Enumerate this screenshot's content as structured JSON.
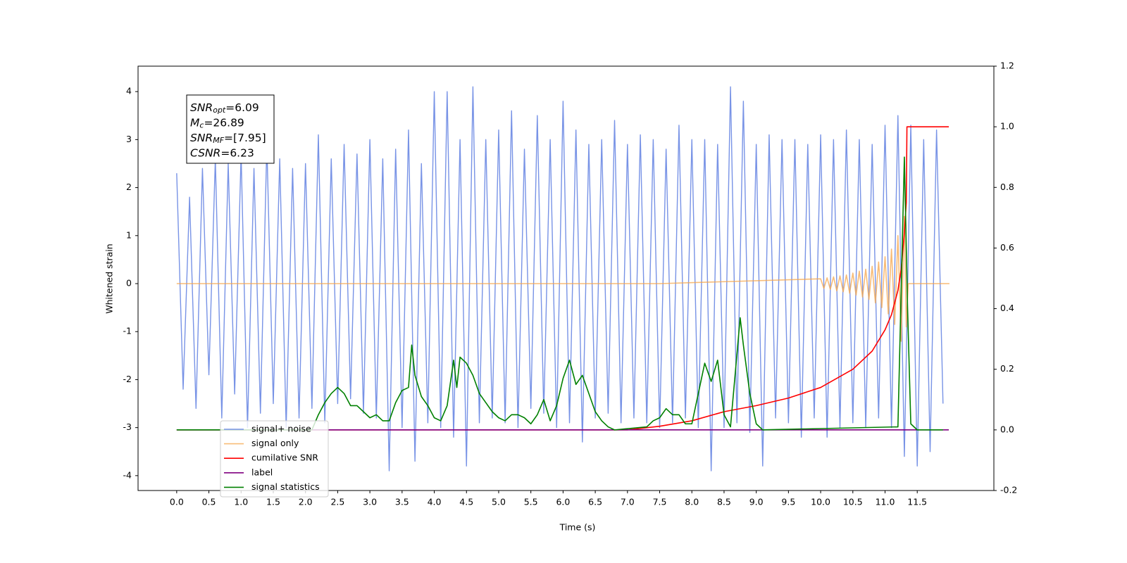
{
  "chart_data": {
    "type": "line",
    "xlabel": "Time (s)",
    "ylabel": "Whitened strain",
    "xlim": [
      -0.6,
      12.69
    ],
    "ylim": [
      -4.31,
      4.53
    ],
    "y2lim": [
      -0.2,
      1.2
    ],
    "xticks": [
      {
        "value": 0,
        "label": "0.0"
      },
      0.5,
      {
        "value": 1,
        "label": "1.0"
      },
      1.5,
      {
        "value": 2,
        "label": "2.0"
      },
      2.5,
      {
        "value": 3,
        "label": "3.0"
      },
      3.5,
      {
        "value": 4,
        "label": "4.0"
      },
      4.5,
      {
        "value": 5,
        "label": "5.0"
      },
      5.5,
      {
        "value": 6,
        "label": "6.0"
      },
      6.5,
      {
        "value": 7,
        "label": "7.0"
      },
      7.5,
      {
        "value": 8,
        "label": "8.0"
      },
      8.5,
      {
        "value": 9,
        "label": "9.0"
      },
      9.5,
      {
        "value": 10,
        "label": "10.0"
      },
      10.5,
      {
        "value": 11,
        "label": "11.0"
      },
      11.5
    ],
    "yticks": [
      -4,
      -3,
      -2,
      -1,
      0,
      1,
      2,
      3,
      4
    ],
    "y2ticks": [
      -0.2,
      {
        "value": 0,
        "label": "0.0"
      },
      0.2,
      0.4,
      0.6,
      0.8,
      {
        "value": 1,
        "label": "1.0"
      },
      1.2
    ],
    "annotation": [
      {
        "main": "SNR",
        "sub": "opt",
        "rest": "=6.09"
      },
      {
        "main": "M",
        "sub": "c",
        "rest": "=26.89"
      },
      {
        "main": "SNR",
        "sub": "MF",
        "rest": "=[7.95]"
      },
      {
        "main": "CSNR",
        "rest": "=6.23"
      }
    ],
    "series": [
      {
        "name": "signal+ noise",
        "color": "#7893e6",
        "axis": "y",
        "x": [
          0,
          0.1,
          0.2,
          0.3,
          0.4,
          0.5,
          0.6,
          0.7,
          0.8,
          0.9,
          1,
          1.1,
          1.2,
          1.3,
          1.4,
          1.5,
          1.6,
          1.7,
          1.8,
          1.9,
          2,
          2.1,
          2.2,
          2.3,
          2.4,
          2.5,
          2.6,
          2.7,
          2.8,
          2.9,
          3,
          3.1,
          3.2,
          3.3,
          3.4,
          3.5,
          3.6,
          3.7,
          3.8,
          3.9,
          4,
          4.1,
          4.2,
          4.3,
          4.4,
          4.5,
          4.6,
          4.7,
          4.8,
          4.9,
          5,
          5.1,
          5.2,
          5.3,
          5.4,
          5.5,
          5.6,
          5.7,
          5.8,
          5.9,
          6,
          6.1,
          6.2,
          6.3,
          6.4,
          6.5,
          6.6,
          6.7,
          6.8,
          6.9,
          7,
          7.1,
          7.2,
          7.3,
          7.4,
          7.5,
          7.6,
          7.7,
          7.8,
          7.9,
          8,
          8.1,
          8.2,
          8.3,
          8.4,
          8.5,
          8.6,
          8.7,
          8.8,
          8.9,
          9,
          9.1,
          9.2,
          9.3,
          9.4,
          9.5,
          9.6,
          9.7,
          9.8,
          9.9,
          10,
          10.1,
          10.2,
          10.3,
          10.4,
          10.5,
          10.6,
          10.7,
          10.8,
          10.9,
          11,
          11.1,
          11.2,
          11.3,
          11.4,
          11.5,
          11.6,
          11.7,
          11.8,
          11.9
        ],
        "values": [
          2.3,
          -2.2,
          1.8,
          -2.6,
          2.4,
          -1.9,
          2.6,
          -2.8,
          2.5,
          -2.3,
          2.7,
          -3.0,
          2.4,
          -2.7,
          2.9,
          -2.5,
          2.6,
          -3.0,
          2.4,
          -2.8,
          2.5,
          -2.6,
          3.1,
          -2.9,
          2.6,
          -2.5,
          2.9,
          -2.4,
          2.7,
          -2.7,
          3.0,
          -2.8,
          2.6,
          -3.9,
          2.8,
          -3.0,
          3.2,
          -3.7,
          2.5,
          -2.9,
          4.0,
          -3.0,
          4.0,
          -3.2,
          3.0,
          -3.8,
          4.1,
          -2.9,
          3.0,
          -2.8,
          3.2,
          -2.9,
          3.6,
          -3.0,
          2.8,
          -2.6,
          3.5,
          -2.7,
          3.0,
          -3.0,
          3.8,
          -2.9,
          3.2,
          -3.3,
          2.9,
          -2.8,
          3.0,
          -2.7,
          3.4,
          -2.9,
          2.9,
          -2.8,
          3.1,
          -2.9,
          3.0,
          -3.0,
          2.8,
          -2.9,
          3.3,
          -2.8,
          3.0,
          -3.0,
          3.0,
          -3.9,
          2.9,
          -3.0,
          4.1,
          -2.9,
          3.8,
          -3.1,
          2.9,
          -3.8,
          3.1,
          -2.8,
          3.0,
          -2.9,
          3.0,
          -3.2,
          2.9,
          -2.8,
          3.1,
          -3.2,
          3.0,
          -3.0,
          3.2,
          -2.9,
          3.0,
          -3.0,
          2.9,
          -2.8,
          3.3,
          -3.0,
          3.5,
          -3.6,
          3.3,
          -3.8,
          3.0,
          -3.5,
          3.2,
          -2.5
        ]
      },
      {
        "name": "signal only",
        "color": "#f5a54a",
        "axis": "y",
        "x": [
          0,
          7.5,
          10,
          10.05,
          10.1,
          10.15,
          10.2,
          10.25,
          10.3,
          10.35,
          10.4,
          10.45,
          10.5,
          10.55,
          10.6,
          10.65,
          10.7,
          10.75,
          10.8,
          10.85,
          10.9,
          10.95,
          11,
          11.05,
          11.1,
          11.15,
          11.2,
          11.25,
          11.3,
          11.33,
          11.36,
          12
        ],
        "values": [
          0,
          0,
          0.1,
          -0.1,
          0.12,
          -0.12,
          0.14,
          -0.15,
          0.16,
          -0.17,
          0.18,
          -0.2,
          0.22,
          -0.24,
          0.26,
          -0.28,
          0.3,
          -0.33,
          0.36,
          -0.4,
          0.45,
          -0.5,
          0.56,
          -0.63,
          0.72,
          -0.85,
          1.0,
          -1.2,
          1.4,
          -0.9,
          0,
          0
        ]
      },
      {
        "name": "cumilative SNR",
        "color": "#ff0000",
        "axis": "y2",
        "x": [
          0,
          7,
          7.5,
          8,
          8.5,
          9,
          9.5,
          10,
          10.5,
          10.8,
          11,
          11.1,
          11.2,
          11.25,
          11.3,
          11.33,
          11.34,
          11.99
        ],
        "values": [
          0,
          0,
          0.012,
          0.03,
          0.06,
          0.08,
          0.105,
          0.14,
          0.2,
          0.26,
          0.33,
          0.38,
          0.46,
          0.53,
          0.65,
          0.75,
          1.0,
          1.0
        ]
      },
      {
        "name": "label",
        "color": "#800080",
        "axis": "y2",
        "x": [
          0,
          11.99
        ],
        "values": [
          0,
          0
        ]
      },
      {
        "name": "signal statistics",
        "color": "#008000",
        "axis": "y2",
        "x": [
          0,
          2.1,
          2.2,
          2.3,
          2.4,
          2.5,
          2.6,
          2.7,
          2.8,
          2.9,
          3,
          3.1,
          3.2,
          3.3,
          3.4,
          3.5,
          3.6,
          3.65,
          3.7,
          3.8,
          3.9,
          4,
          4.1,
          4.2,
          4.3,
          4.35,
          4.4,
          4.5,
          4.6,
          4.7,
          4.8,
          4.9,
          5,
          5.1,
          5.2,
          5.3,
          5.4,
          5.5,
          5.6,
          5.7,
          5.8,
          5.9,
          6,
          6.1,
          6.2,
          6.3,
          6.4,
          6.5,
          6.6,
          6.7,
          6.8,
          7.3,
          7.4,
          7.5,
          7.6,
          7.7,
          7.8,
          7.9,
          8,
          8.1,
          8.2,
          8.3,
          8.4,
          8.5,
          8.6,
          8.7,
          8.75,
          8.8,
          8.9,
          9,
          9.1,
          11.2,
          11.3,
          11.35,
          11.4,
          11.5,
          11.9
        ],
        "values": [
          0,
          0,
          0.05,
          0.09,
          0.12,
          0.14,
          0.12,
          0.08,
          0.08,
          0.06,
          0.04,
          0.05,
          0.03,
          0.03,
          0.09,
          0.13,
          0.14,
          0.28,
          0.18,
          0.11,
          0.08,
          0.04,
          0.03,
          0.08,
          0.23,
          0.14,
          0.24,
          0.22,
          0.18,
          0.12,
          0.09,
          0.06,
          0.04,
          0.03,
          0.05,
          0.05,
          0.04,
          0.02,
          0.05,
          0.1,
          0.03,
          0.08,
          0.17,
          0.23,
          0.15,
          0.18,
          0.12,
          0.06,
          0.03,
          0.01,
          0,
          0.01,
          0.03,
          0.04,
          0.07,
          0.05,
          0.05,
          0.02,
          0.02,
          0.12,
          0.22,
          0.16,
          0.23,
          0.05,
          0.01,
          0.25,
          0.37,
          0.28,
          0.12,
          0.02,
          0,
          0.01,
          0.9,
          0.4,
          0.02,
          0,
          0
        ]
      }
    ]
  }
}
